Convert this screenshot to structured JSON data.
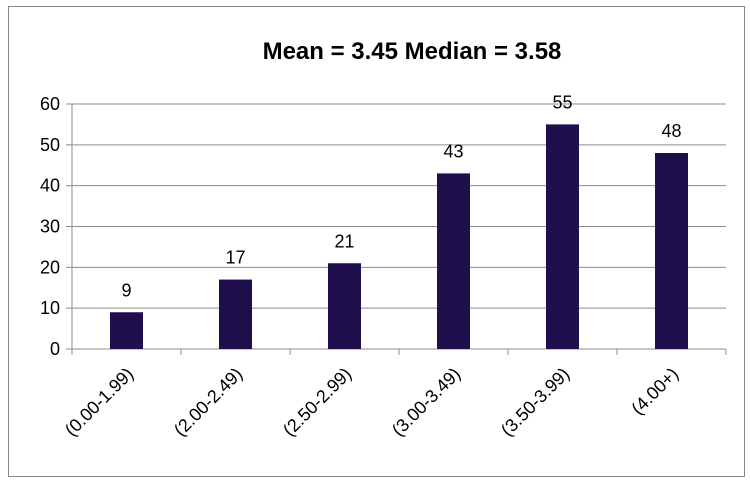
{
  "chart_data": {
    "type": "bar",
    "title": "Mean = 3.45   Median = 3.58",
    "categories": [
      "(0.00-1.99)",
      "(2.00-2.49)",
      "(2.50-2.99)",
      "(3.00-3.49)",
      "(3.50-3.99)",
      "(4.00+)"
    ],
    "values": [
      9,
      17,
      21,
      43,
      55,
      48
    ],
    "data_labels": [
      "9",
      "17",
      "21",
      "43",
      "55",
      "48"
    ],
    "ylim": [
      0,
      60
    ],
    "yticks": [
      0,
      10,
      20,
      30,
      40,
      50,
      60
    ],
    "grid": true,
    "legend": "none",
    "xlabel": "",
    "ylabel": "",
    "bar_color": "#1f0f4d"
  }
}
